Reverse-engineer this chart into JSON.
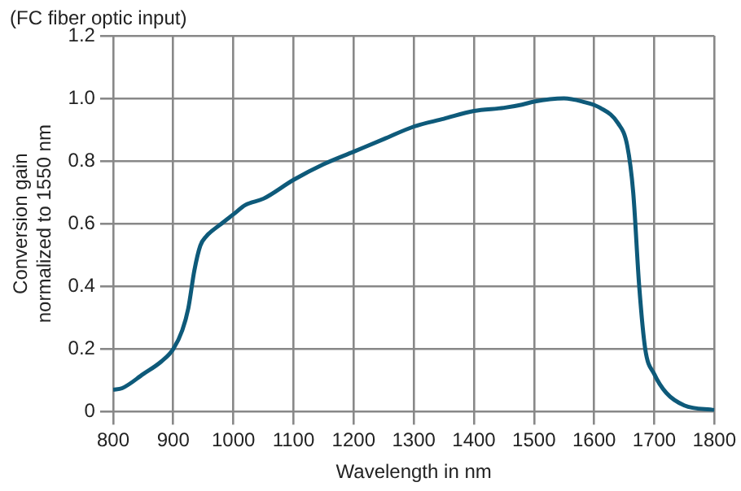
{
  "chart_data": {
    "type": "line",
    "title": "(FC fiber optic input)",
    "xlabel": "Wavelength in nm",
    "ylabel": "Conversion gain\nnormalized to 1550 nm",
    "x": [
      800,
      815,
      850,
      880,
      900,
      915,
      925,
      935,
      945,
      955,
      980,
      1000,
      1020,
      1050,
      1100,
      1150,
      1200,
      1250,
      1300,
      1350,
      1400,
      1450,
      1480,
      1500,
      1550,
      1580,
      1610,
      1640,
      1655,
      1665,
      1675,
      1685,
      1700,
      1720,
      1750,
      1800
    ],
    "series": [
      {
        "color": "#0e5a7a",
        "values": [
          0.07,
          0.075,
          0.12,
          0.16,
          0.2,
          0.26,
          0.33,
          0.45,
          0.53,
          0.56,
          0.6,
          0.63,
          0.66,
          0.68,
          0.74,
          0.79,
          0.83,
          0.87,
          0.91,
          0.935,
          0.96,
          0.97,
          0.98,
          0.99,
          1.0,
          0.99,
          0.97,
          0.92,
          0.85,
          0.7,
          0.4,
          0.2,
          0.12,
          0.06,
          0.02,
          0.005
        ]
      }
    ],
    "xlim": [
      800,
      1800
    ],
    "xticks": [
      800,
      900,
      1000,
      1100,
      1200,
      1300,
      1400,
      1500,
      1600,
      1700,
      1800
    ],
    "ylim": [
      0,
      1.2
    ],
    "yticks": [
      0,
      0.2,
      0.4,
      0.6,
      0.8,
      {
        "value": 1,
        "label": "1.0"
      },
      1.2
    ],
    "grid": true,
    "legend": false,
    "marker": "none",
    "line_style": "solid"
  }
}
